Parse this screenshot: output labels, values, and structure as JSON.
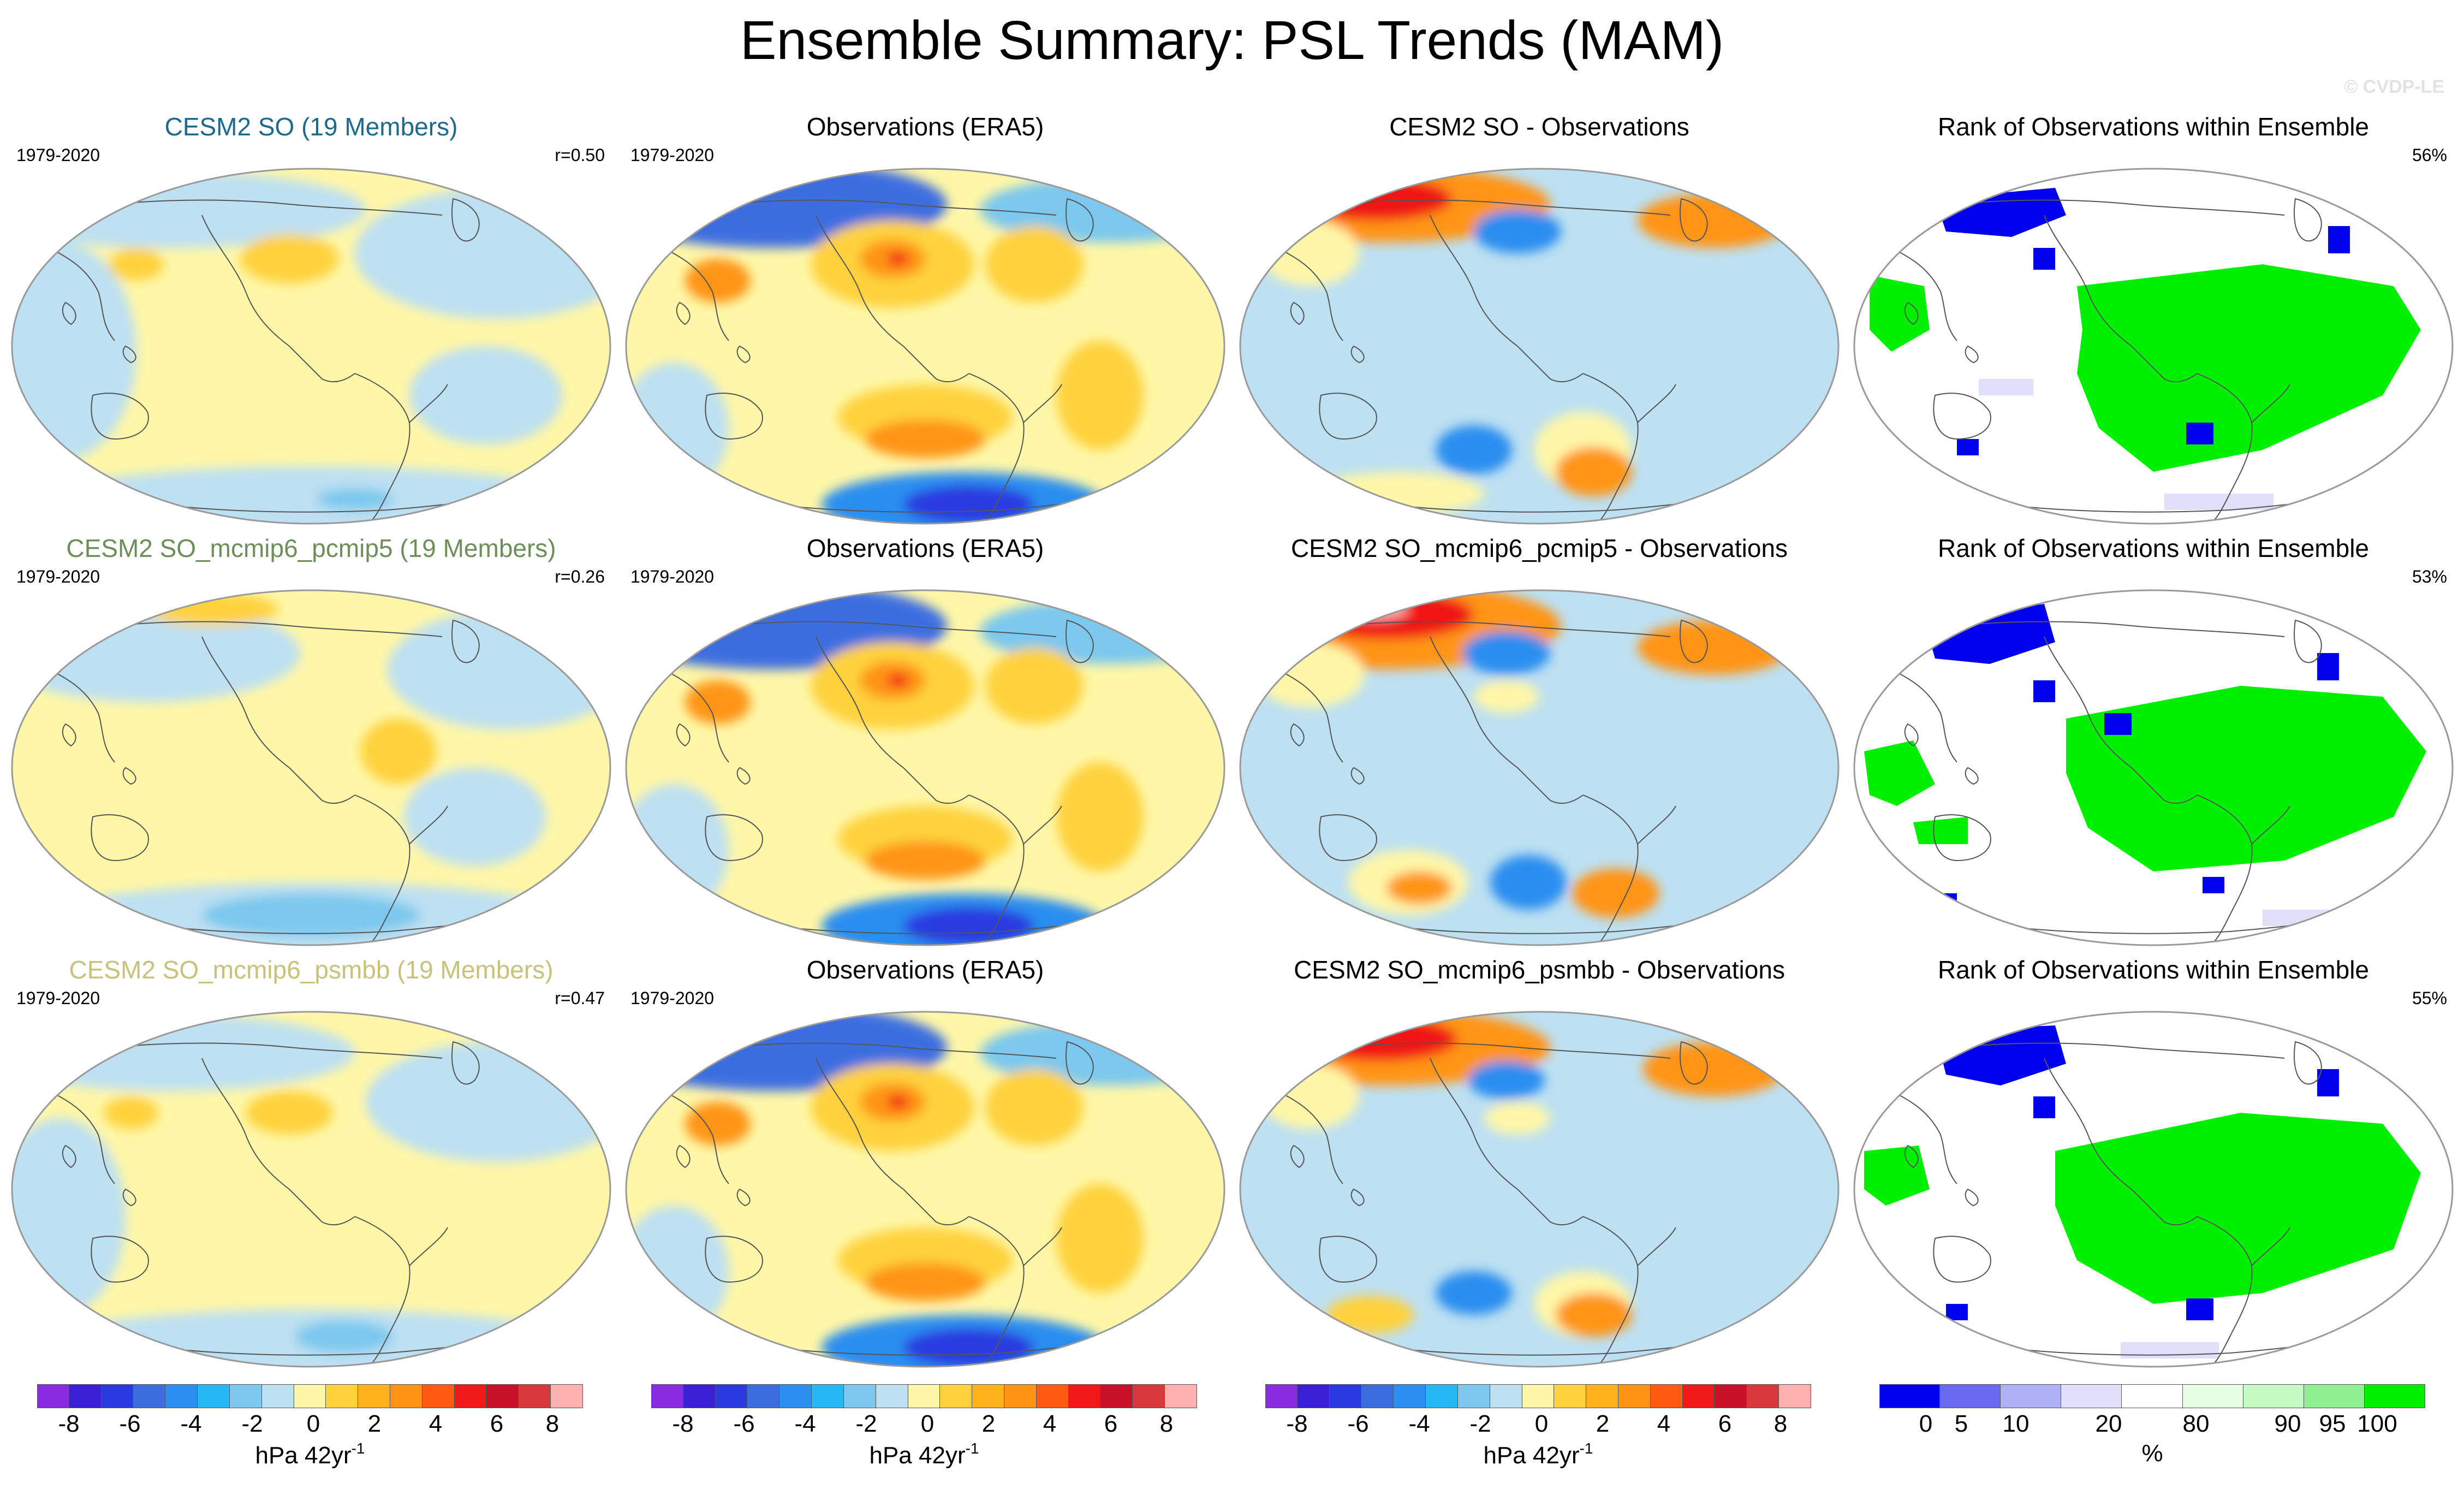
{
  "title": "Ensemble Summary: PSL Trends (MAM)",
  "watermark": "© CVDP-LE",
  "colors": {
    "model_title_1": "#1f6a8c",
    "model_title_2": "#6f8f5a",
    "model_title_3": "#c8c27a",
    "ocean_outline": "#9a9a9a",
    "coast": "#555555"
  },
  "rows": [
    {
      "model": {
        "title": "CESM2 SO (19 Members)",
        "period": "1979-2020",
        "corr": "r=0.50"
      },
      "obs": {
        "title": "Observations (ERA5)",
        "period": "1979-2020"
      },
      "diff": {
        "title": "CESM2 SO - Observations"
      },
      "rank": {
        "title": "Rank of Observations within Ensemble",
        "pct": "56%"
      }
    },
    {
      "model": {
        "title": "CESM2 SO_mcmip6_pcmip5 (19 Members)",
        "period": "1979-2020",
        "corr": "r=0.26"
      },
      "obs": {
        "title": "Observations (ERA5)",
        "period": "1979-2020"
      },
      "diff": {
        "title": "CESM2 SO_mcmip6_pcmip5 - Observations"
      },
      "rank": {
        "title": "Rank of Observations within Ensemble",
        "pct": "53%"
      }
    },
    {
      "model": {
        "title": "CESM2 SO_mcmip6_psmbb (19 Members)",
        "period": "1979-2020",
        "corr": "r=0.47"
      },
      "obs": {
        "title": "Observations (ERA5)",
        "period": "1979-2020"
      },
      "diff": {
        "title": "CESM2 SO_mcmip6_psmbb - Observations"
      },
      "rank": {
        "title": "Rank of Observations within Ensemble",
        "pct": "55%"
      }
    }
  ],
  "colorbars": {
    "trend": {
      "colors": [
        "#8a2be2",
        "#3a1fd6",
        "#2a3ae0",
        "#3d6ee0",
        "#2b8ef0",
        "#25b8f5",
        "#7cc8ee",
        "#bde0f2",
        "#fff7a8",
        "#ffd23c",
        "#ffb21c",
        "#ff9414",
        "#ff5a10",
        "#f01818",
        "#c81028",
        "#d8383c",
        "#ffb0b0"
      ],
      "ticks": [
        "-8",
        "-6",
        "-4",
        "-2",
        "0",
        "2",
        "4",
        "6",
        "8"
      ],
      "units": "hPa 42yr",
      "units_exp": "-1"
    },
    "rank": {
      "colors": [
        "#0000ee",
        "#6a6af0",
        "#b0b0f6",
        "#e0e0fa",
        "#ffffff",
        "#e4ffe4",
        "#c4fcc4",
        "#8ef08e",
        "#00f000"
      ],
      "ticks": [
        "0",
        "5",
        "10",
        "20",
        "80",
        "90",
        "95",
        "100"
      ],
      "units": "%"
    }
  },
  "chart_data": {
    "type": "heatmap",
    "title": "Ensemble Summary: PSL Trends (MAM)",
    "period": "1979-2020",
    "units": "hPa 42yr-1",
    "contour_levels": [
      -8,
      -7,
      -6,
      -5,
      -4,
      -3,
      -2,
      -1,
      0,
      1,
      2,
      3,
      4,
      5,
      6,
      7,
      8
    ],
    "rank_levels": [
      0,
      5,
      10,
      20,
      80,
      90,
      95,
      100
    ],
    "panels": [
      {
        "row": 1,
        "col": "model",
        "title": "CESM2 SO (19 Members)",
        "pattern_correlation": 0.5
      },
      {
        "row": 1,
        "col": "obs",
        "title": "Observations (ERA5)"
      },
      {
        "row": 1,
        "col": "diff",
        "title": "CESM2 SO - Observations"
      },
      {
        "row": 1,
        "col": "rank",
        "title": "Rank of Observations within Ensemble",
        "percent": 56
      },
      {
        "row": 2,
        "col": "model",
        "title": "CESM2 SO_mcmip6_pcmip5 (19 Members)",
        "pattern_correlation": 0.26
      },
      {
        "row": 2,
        "col": "obs",
        "title": "Observations (ERA5)"
      },
      {
        "row": 2,
        "col": "diff",
        "title": "CESM2 SO_mcmip6_pcmip5 - Observations"
      },
      {
        "row": 2,
        "col": "rank",
        "title": "Rank of Observations within Ensemble",
        "percent": 53
      },
      {
        "row": 3,
        "col": "model",
        "title": "CESM2 SO_mcmip6_psmbb (19 Members)",
        "pattern_correlation": 0.47
      },
      {
        "row": 3,
        "col": "obs",
        "title": "Observations (ERA5)"
      },
      {
        "row": 3,
        "col": "diff",
        "title": "CESM2 SO_mcmip6_psmbb - Observations"
      },
      {
        "row": 3,
        "col": "rank",
        "title": "Rank of Observations within Ensemble",
        "percent": 55
      }
    ]
  }
}
